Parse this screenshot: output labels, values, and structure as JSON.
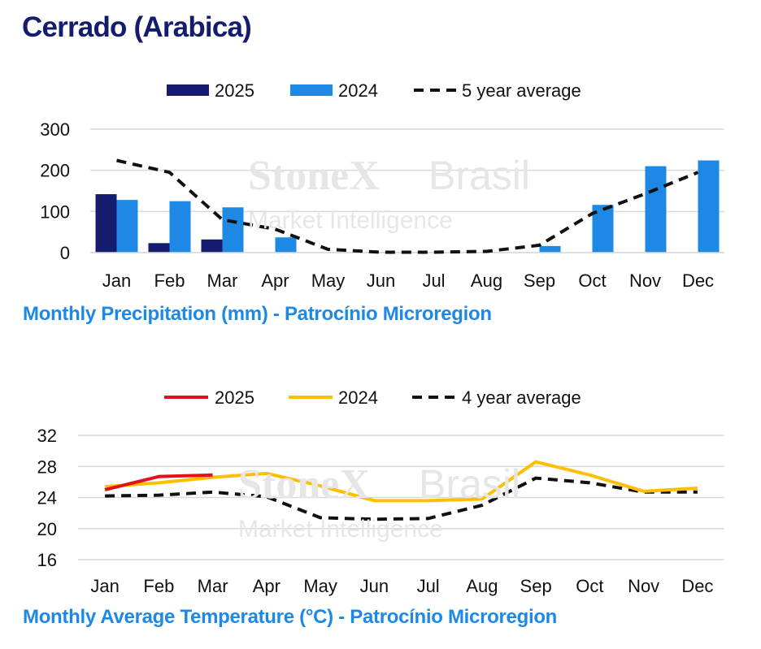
{
  "page": {
    "title": "Cerrado (Arabica)"
  },
  "colors": {
    "title": "#141c6e",
    "caption": "#1e88e5",
    "bar_2025": "#141c6e",
    "bar_2024": "#1e88e5",
    "temp_2025": "#e3101c",
    "temp_2024": "#ffbf00",
    "average": "#111111",
    "grid": "#d9d9d9"
  },
  "watermark": {
    "brand": "StoneX",
    "brand_suffix": "Brasil",
    "tagline": "Market Intelligence"
  },
  "chart_data": [
    {
      "type": "bar",
      "caption": "Monthly Precipitation (mm) - Patrocínio Microregion",
      "categories": [
        "Jan",
        "Feb",
        "Mar",
        "Apr",
        "May",
        "Jun",
        "Jul",
        "Aug",
        "Sep",
        "Oct",
        "Nov",
        "Dec"
      ],
      "ylim": [
        0,
        300
      ],
      "yticks": [
        0,
        100,
        200,
        300
      ],
      "grid": true,
      "legend": "top",
      "series": [
        {
          "name": "2025",
          "kind": "bar",
          "color": "#141c6e",
          "values": [
            142,
            23,
            32,
            null,
            null,
            null,
            null,
            null,
            null,
            null,
            null,
            null
          ]
        },
        {
          "name": "2024",
          "kind": "bar",
          "color": "#1e88e5",
          "values": [
            128,
            125,
            110,
            37,
            0,
            0,
            0,
            0,
            16,
            116,
            210,
            224
          ]
        },
        {
          "name": "5 year average",
          "kind": "line",
          "dashed": true,
          "color": "#111111",
          "values": [
            224,
            195,
            80,
            57,
            8,
            1,
            1,
            3,
            18,
            95,
            143,
            195
          ]
        }
      ]
    },
    {
      "type": "line",
      "caption": "Monthly Average Temperature (°C) - Patrocínio Microregion",
      "categories": [
        "Jan",
        "Feb",
        "Mar",
        "Apr",
        "May",
        "Jun",
        "Jul",
        "Aug",
        "Sep",
        "Oct",
        "Nov",
        "Dec"
      ],
      "ylim": [
        16,
        32
      ],
      "yticks": [
        16,
        20,
        24,
        28,
        32
      ],
      "grid": true,
      "legend": "top",
      "series": [
        {
          "name": "2025",
          "color": "#e3101c",
          "dashed": false,
          "values": [
            25.0,
            26.7,
            26.9,
            null,
            null,
            null,
            null,
            null,
            null,
            null,
            null,
            null
          ]
        },
        {
          "name": "2024",
          "color": "#ffbf00",
          "dashed": false,
          "values": [
            25.4,
            25.9,
            26.6,
            27.1,
            25.5,
            23.6,
            23.6,
            23.8,
            28.6,
            26.9,
            24.8,
            25.2
          ]
        },
        {
          "name": "4 year average",
          "color": "#111111",
          "dashed": true,
          "values": [
            24.2,
            24.3,
            24.7,
            24.1,
            21.4,
            21.2,
            21.3,
            23.0,
            26.5,
            25.9,
            24.7,
            24.7
          ]
        }
      ]
    }
  ]
}
